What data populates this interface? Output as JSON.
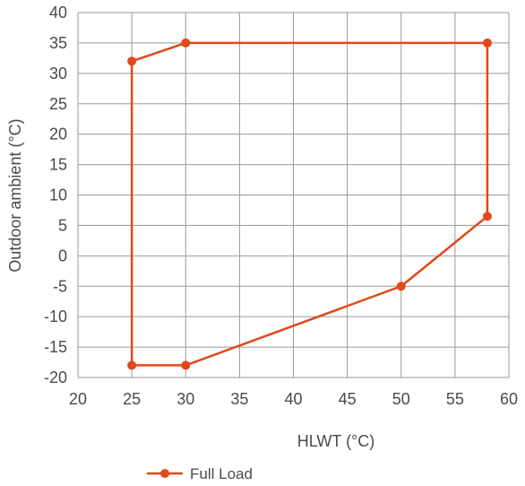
{
  "chart_data": {
    "type": "line",
    "title": "",
    "xlabel": "HLWT (°C)",
    "ylabel": "Outdoor ambient (°C)",
    "xlim": [
      20,
      60
    ],
    "ylim": [
      -20,
      40
    ],
    "xticks": [
      "20",
      "25",
      "30",
      "35",
      "40",
      "45",
      "50",
      "55",
      "60"
    ],
    "yticks": [
      "40",
      "35",
      "30",
      "25",
      "20",
      "15",
      "10",
      "5",
      "0",
      "-5",
      "-10",
      "-15",
      "-20"
    ],
    "grid": true,
    "legend_position": "bottom-center",
    "series": [
      {
        "name": "Full Load",
        "color": "#e0491b",
        "closed": true,
        "x": [
          25,
          30,
          58,
          58,
          50,
          30,
          25,
          25
        ],
        "y": [
          32,
          35,
          35,
          6.5,
          -5,
          -18,
          -18,
          32
        ]
      }
    ]
  }
}
